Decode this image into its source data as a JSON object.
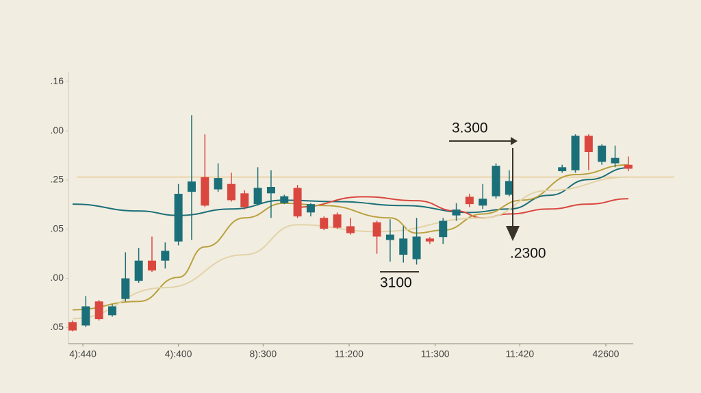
{
  "chart_data": {
    "type": "candlestick",
    "up_color": "#1b6f78",
    "down_color": "#d9473f",
    "x": [
      0,
      1,
      2,
      3,
      4,
      5,
      6,
      7,
      8,
      9,
      10,
      11,
      12,
      13,
      14,
      15,
      16,
      17,
      18,
      19,
      20,
      21,
      23,
      24,
      25,
      26,
      27,
      28,
      29,
      30,
      31,
      32,
      33,
      37,
      38,
      39,
      40,
      41,
      42
    ],
    "open": [
      1.11,
      1.04,
      1.53,
      1.25,
      1.58,
      1.95,
      2.36,
      2.36,
      2.75,
      3.76,
      4.06,
      3.81,
      3.92,
      3.73,
      3.51,
      3.73,
      3.53,
      3.84,
      3.34,
      3.23,
      3.3,
      3.06,
      3.14,
      2.78,
      2.48,
      2.39,
      2.81,
      2.84,
      3.28,
      3.66,
      3.48,
      3.67,
      3.7,
      4.18,
      4.2,
      4.9,
      4.37,
      4.34,
      4.31
    ],
    "high": [
      1.14,
      1.64,
      1.56,
      1.47,
      2.53,
      2.62,
      2.85,
      2.73,
      3.92,
      5.32,
      4.93,
      4.34,
      4.15,
      3.79,
      4.26,
      4.2,
      3.7,
      3.9,
      3.53,
      3.26,
      3.34,
      3.23,
      3.17,
      3.2,
      3.06,
      3.23,
      2.84,
      3.23,
      3.53,
      3.72,
      3.92,
      4.34,
      4.2,
      4.31,
      4.93,
      4.93,
      4.73,
      4.7,
      4.48
    ],
    "low": [
      0.92,
      1.01,
      1.14,
      1.22,
      1.53,
      1.91,
      2.13,
      2.2,
      2.67,
      2.78,
      3.45,
      3.76,
      3.56,
      3.4,
      3.48,
      3.23,
      3.51,
      3.23,
      3.26,
      2.98,
      3.01,
      2.89,
      2.5,
      2.34,
      2.32,
      2.28,
      2.7,
      2.7,
      3.17,
      3.45,
      3.41,
      3.62,
      3.67,
      4.15,
      4.15,
      4.2,
      4.31,
      4.26,
      4.18
    ],
    "close": [
      0.94,
      1.43,
      1.17,
      1.43,
      2.0,
      2.36,
      2.16,
      2.56,
      3.72,
      3.97,
      3.48,
      4.04,
      3.59,
      3.45,
      3.84,
      3.86,
      3.67,
      3.26,
      3.51,
      3.01,
      3.03,
      2.92,
      2.85,
      2.89,
      2.81,
      2.85,
      2.75,
      3.17,
      3.4,
      3.51,
      3.62,
      4.29,
      3.98,
      4.26,
      4.9,
      4.57,
      4.7,
      4.45,
      4.23
    ],
    "overlays": [
      {
        "color": "#1b6f78",
        "x": [
          0,
          5,
          8,
          12,
          16,
          20,
          25,
          30,
          33,
          36,
          39,
          42
        ],
        "values": [
          3.51,
          3.37,
          3.28,
          3.41,
          3.59,
          3.56,
          3.48,
          3.34,
          3.41,
          3.69,
          4.01,
          4.25
        ]
      },
      {
        "color": "#d9473f",
        "x": [
          17,
          22,
          26,
          29,
          31,
          33,
          36,
          39,
          42
        ],
        "values": [
          3.45,
          3.66,
          3.58,
          3.37,
          3.23,
          3.31,
          3.41,
          3.51,
          3.62
        ]
      },
      {
        "color": "#b9a13e",
        "x": [
          0,
          5,
          8,
          10,
          13,
          16,
          19,
          24,
          26,
          28,
          31,
          34,
          38,
          42
        ],
        "values": [
          1.36,
          1.53,
          2.02,
          2.64,
          3.23,
          3.53,
          3.48,
          3.23,
          2.92,
          2.98,
          3.31,
          3.59,
          4.11,
          4.31
        ]
      },
      {
        "color": "#e2d3a8",
        "x": [
          0,
          7,
          13,
          17,
          23,
          31,
          36,
          42
        ],
        "values": [
          1.18,
          1.81,
          2.48,
          3.09,
          2.95,
          3.23,
          3.79,
          4.06
        ]
      }
    ],
    "hline": {
      "value": 4.06,
      "color": "#e8c98e"
    },
    "xlim": [
      -0.31,
      42.37
    ],
    "ylim": [
      0.67,
      6.27
    ],
    "xticks": [
      {
        "value": 0.78,
        "label": "4):440"
      },
      {
        "value": 8.0,
        "label": "4):400"
      },
      {
        "value": 14.4,
        "label": "8):300"
      },
      {
        "value": 20.9,
        "label": "11:200"
      },
      {
        "value": 27.4,
        "label": "11:300"
      },
      {
        "value": 33.8,
        "label": "11:420"
      },
      {
        "value": 40.3,
        "label": "42600"
      }
    ],
    "yticks": [
      {
        "value": 6,
        "label": ".16"
      },
      {
        "value": 5,
        "label": ".00"
      },
      {
        "value": 4,
        "label": ".25"
      },
      {
        "value": 3,
        "label": ".05"
      },
      {
        "value": 2,
        "label": ".00"
      },
      {
        "value": 1,
        "label": ".05"
      }
    ],
    "annotations": [
      "3.300",
      ".2300",
      "3100"
    ]
  }
}
